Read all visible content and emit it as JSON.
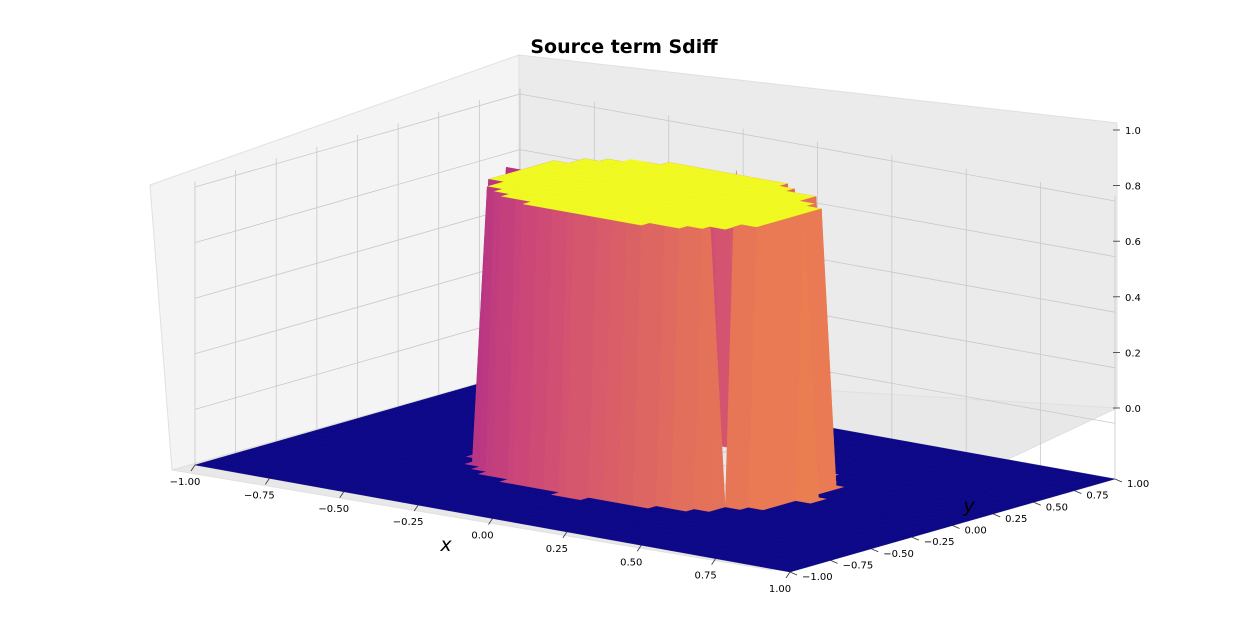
{
  "chart_data": {
    "type": "surface3d",
    "title": "Source term Sdiff",
    "xlabel": "x",
    "ylabel": "y",
    "zlabel": "",
    "x_ticks": [
      "−1.00",
      "−0.75",
      "−0.50",
      "−0.25",
      "0.00",
      "0.25",
      "0.50",
      "0.75",
      "1.00"
    ],
    "y_ticks": [
      "−1.00",
      "−0.75",
      "−0.50",
      "−0.25",
      "0.00",
      "0.25",
      "0.50",
      "0.75",
      "1.00"
    ],
    "z_ticks": [
      "0.0",
      "0.2",
      "0.4",
      "0.6",
      "0.8",
      "1.0"
    ],
    "xlim": [
      -1,
      1
    ],
    "ylim": [
      -1,
      1
    ],
    "zlim": [
      0,
      1
    ],
    "colormap": "plasma",
    "surface": {
      "description_of_values": "indicator function: z = 1 inside disk of radius 0.5 centered at origin, 0 elsewhere",
      "disk_center": [
        0,
        0
      ],
      "disk_radius": 0.5,
      "inside_value": 1,
      "outside_value": 0
    },
    "colors": {
      "low": "#0d0887",
      "mid": "#b12a90",
      "high": "#f0f921",
      "pane": "#f2f2f2"
    }
  }
}
